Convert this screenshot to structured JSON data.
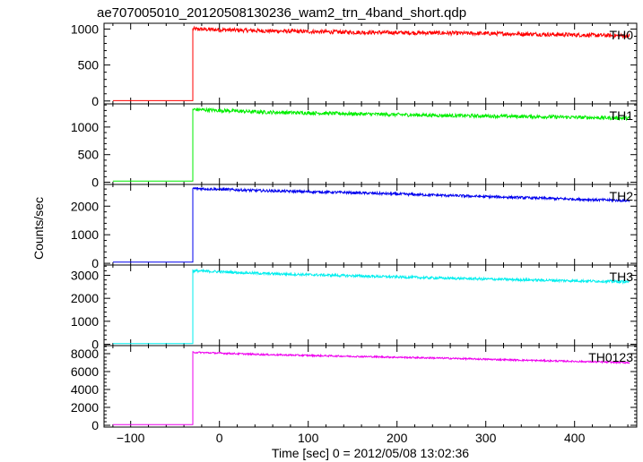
{
  "chart_data": {
    "type": "line",
    "title": "ae707005010_20120508130236_wam2_trn_4band_short.qdp",
    "xlabel": "Time [sec] 0 = 2012/05/08 13:02:36",
    "ylabel": "Counts/sec",
    "xlim": [
      -130,
      470
    ],
    "x_ticks": [
      -100,
      0,
      100,
      200,
      300,
      400
    ],
    "x_tick_labels": [
      "−100",
      "0",
      "100",
      "200",
      "300",
      "400"
    ],
    "grid": false,
    "panels": [
      {
        "name": "TH0",
        "color": "#ff0000",
        "ylim": [
          -40,
          1080
        ],
        "y_ticks": [
          0,
          500,
          1000
        ],
        "y_tick_labels": [
          "0",
          "500",
          "1000"
        ],
        "pre_level": 5,
        "onset_x": -30,
        "end_x": 462,
        "trend": [
          [
            -30,
            1000
          ],
          [
            50,
            975
          ],
          [
            150,
            955
          ],
          [
            250,
            945
          ],
          [
            350,
            930
          ],
          [
            462,
            905
          ]
        ],
        "noise": 28
      },
      {
        "name": "TH1",
        "color": "#00ee00",
        "ylim": [
          -40,
          1420
        ],
        "y_ticks": [
          0,
          500,
          1000
        ],
        "y_tick_labels": [
          "0",
          "500",
          "1000"
        ],
        "pre_level": 20,
        "onset_x": -30,
        "end_x": 462,
        "trend": [
          [
            -30,
            1320
          ],
          [
            50,
            1270
          ],
          [
            150,
            1240
          ],
          [
            250,
            1210
          ],
          [
            350,
            1190
          ],
          [
            462,
            1160
          ]
        ],
        "noise": 32
      },
      {
        "name": "TH2",
        "color": "#0000ee",
        "ylim": [
          -60,
          2760
        ],
        "y_ticks": [
          0,
          1000,
          2000
        ],
        "y_tick_labels": [
          "0",
          "1000",
          "2000"
        ],
        "pre_level": 40,
        "onset_x": -30,
        "end_x": 462,
        "trend": [
          [
            -30,
            2620
          ],
          [
            50,
            2540
          ],
          [
            150,
            2470
          ],
          [
            250,
            2380
          ],
          [
            350,
            2290
          ],
          [
            462,
            2190
          ]
        ],
        "noise": 45
      },
      {
        "name": "TH3",
        "color": "#00eeee",
        "ylim": [
          -60,
          3450
        ],
        "y_ticks": [
          0,
          1000,
          2000,
          3000
        ],
        "y_tick_labels": [
          "0",
          "1000",
          "2000",
          "3000"
        ],
        "pre_level": 30,
        "onset_x": -30,
        "end_x": 462,
        "trend": [
          [
            -30,
            3200
          ],
          [
            50,
            3080
          ],
          [
            150,
            2980
          ],
          [
            250,
            2880
          ],
          [
            350,
            2800
          ],
          [
            462,
            2720
          ]
        ],
        "noise": 55
      },
      {
        "name": "TH0123",
        "color": "#ee00ee",
        "ylim": [
          -200,
          8900
        ],
        "y_ticks": [
          0,
          2000,
          4000,
          6000,
          8000
        ],
        "y_tick_labels": [
          "0",
          "2000",
          "4000",
          "6000",
          "8000"
        ],
        "pre_level": 80,
        "onset_x": -30,
        "end_x": 462,
        "trend": [
          [
            -30,
            8150
          ],
          [
            50,
            7900
          ],
          [
            150,
            7700
          ],
          [
            250,
            7500
          ],
          [
            350,
            7250
          ],
          [
            462,
            7000
          ]
        ],
        "noise": 90
      }
    ]
  }
}
